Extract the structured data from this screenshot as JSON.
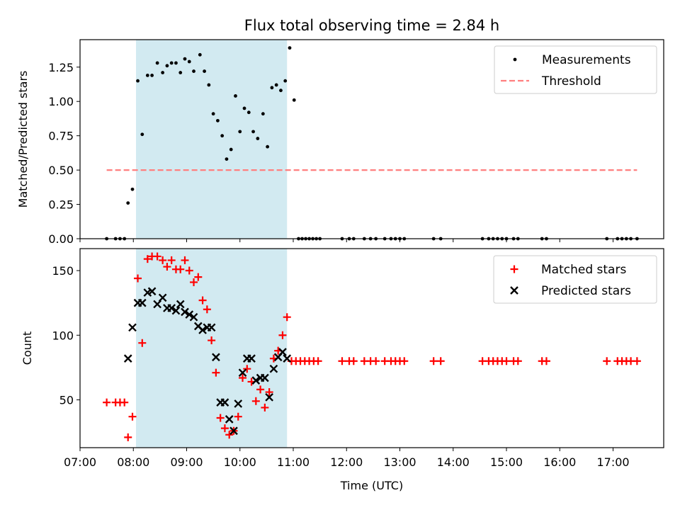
{
  "figure": {
    "title": "Flux total observing time = 2.84 h",
    "highlight_color": "#add8e6"
  },
  "chart_data": [
    {
      "type": "scatter",
      "x_type": "time",
      "xlim": [
        "07:00",
        "17:57"
      ],
      "ylim": [
        0,
        1.45
      ],
      "ylabel": "Matched/Predicted stars",
      "yticks": [
        "0.00",
        "0.25",
        "0.50",
        "0.75",
        "1.00",
        "1.25"
      ],
      "highlight_span": [
        "08:03",
        "10:53"
      ],
      "legend": "top-right",
      "series": [
        {
          "name": "Measurements",
          "marker": "dot",
          "color": "#000000",
          "points": [
            [
              "07:30",
              0
            ],
            [
              "07:40",
              0
            ],
            [
              "07:45",
              0
            ],
            [
              "07:50",
              0
            ],
            [
              "07:54",
              0.26
            ],
            [
              "07:59",
              0.36
            ],
            [
              "08:05",
              1.15
            ],
            [
              "08:10",
              0.76
            ],
            [
              "08:16",
              1.19
            ],
            [
              "08:21",
              1.19
            ],
            [
              "08:27",
              1.28
            ],
            [
              "08:33",
              1.21
            ],
            [
              "08:38",
              1.26
            ],
            [
              "08:43",
              1.28
            ],
            [
              "08:48",
              1.28
            ],
            [
              "08:53",
              1.21
            ],
            [
              "08:58",
              1.31
            ],
            [
              "09:03",
              1.29
            ],
            [
              "09:08",
              1.22
            ],
            [
              "09:15",
              1.34
            ],
            [
              "09:20",
              1.22
            ],
            [
              "09:25",
              1.12
            ],
            [
              "09:30",
              0.91
            ],
            [
              "09:35",
              0.86
            ],
            [
              "09:40",
              0.75
            ],
            [
              "09:45",
              0.58
            ],
            [
              "09:50",
              0.65
            ],
            [
              "09:55",
              1.04
            ],
            [
              "10:00",
              0.78
            ],
            [
              "10:05",
              0.95
            ],
            [
              "10:10",
              0.92
            ],
            [
              "10:15",
              0.78
            ],
            [
              "10:20",
              0.73
            ],
            [
              "10:26",
              0.91
            ],
            [
              "10:31",
              0.67
            ],
            [
              "10:36",
              1.1
            ],
            [
              "10:41",
              1.12
            ],
            [
              "10:46",
              1.08
            ],
            [
              "10:51",
              1.15
            ],
            [
              "10:56",
              1.39
            ],
            [
              "11:01",
              1.01
            ],
            [
              "11:06",
              0
            ],
            [
              "11:10",
              0
            ],
            [
              "11:14",
              0
            ],
            [
              "11:18",
              0
            ],
            [
              "11:22",
              0
            ],
            [
              "11:26",
              0
            ],
            [
              "11:30",
              0
            ],
            [
              "11:55",
              0
            ],
            [
              "12:03",
              0
            ],
            [
              "12:08",
              0
            ],
            [
              "12:20",
              0
            ],
            [
              "12:27",
              0
            ],
            [
              "12:33",
              0
            ],
            [
              "12:43",
              0
            ],
            [
              "12:50",
              0
            ],
            [
              "12:55",
              0
            ],
            [
              "13:00",
              0
            ],
            [
              "13:05",
              0
            ],
            [
              "13:38",
              0
            ],
            [
              "13:46",
              0
            ],
            [
              "14:33",
              0
            ],
            [
              "14:40",
              0
            ],
            [
              "14:45",
              0
            ],
            [
              "14:50",
              0
            ],
            [
              "14:55",
              0
            ],
            [
              "15:00",
              0
            ],
            [
              "15:08",
              0
            ],
            [
              "15:13",
              0
            ],
            [
              "15:40",
              0
            ],
            [
              "15:45",
              0
            ],
            [
              "16:53",
              0
            ],
            [
              "17:05",
              0
            ],
            [
              "17:10",
              0
            ],
            [
              "17:15",
              0
            ],
            [
              "17:20",
              0
            ],
            [
              "17:27",
              0
            ]
          ]
        },
        {
          "name": "Threshold",
          "style": "dashed-line",
          "color": "#ff7f7f",
          "points": [
            [
              "07:30",
              0.5
            ],
            [
              "17:27",
              0.5
            ]
          ]
        }
      ]
    },
    {
      "type": "scatter",
      "x_type": "time",
      "xlim": [
        "07:00",
        "17:57"
      ],
      "ylim": [
        13,
        167
      ],
      "xlabel": "Time (UTC)",
      "ylabel": "Count",
      "yticks": [
        "50",
        "100",
        "150"
      ],
      "xticks": [
        "07:00",
        "08:00",
        "09:00",
        "10:00",
        "11:00",
        "12:00",
        "13:00",
        "14:00",
        "15:00",
        "16:00",
        "17:00"
      ],
      "highlight_span": [
        "08:03",
        "10:53"
      ],
      "legend": "top-right",
      "series": [
        {
          "name": "Matched stars",
          "marker": "plus",
          "color": "#ff0000",
          "points": [
            [
              "07:30",
              48
            ],
            [
              "07:40",
              48
            ],
            [
              "07:45",
              48
            ],
            [
              "07:50",
              48
            ],
            [
              "07:54",
              21
            ],
            [
              "07:59",
              37
            ],
            [
              "08:05",
              144
            ],
            [
              "08:10",
              94
            ],
            [
              "08:16",
              159
            ],
            [
              "08:21",
              161
            ],
            [
              "08:27",
              161
            ],
            [
              "08:33",
              158
            ],
            [
              "08:38",
              153
            ],
            [
              "08:43",
              158
            ],
            [
              "08:48",
              151
            ],
            [
              "08:53",
              151
            ],
            [
              "08:58",
              158
            ],
            [
              "09:03",
              150
            ],
            [
              "09:08",
              141
            ],
            [
              "09:13",
              145
            ],
            [
              "09:18",
              127
            ],
            [
              "09:23",
              120
            ],
            [
              "09:28",
              96
            ],
            [
              "09:33",
              71
            ],
            [
              "09:38",
              36
            ],
            [
              "09:43",
              28
            ],
            [
              "09:48",
              23
            ],
            [
              "09:53",
              26
            ],
            [
              "09:58",
              37
            ],
            [
              "10:03",
              67
            ],
            [
              "10:08",
              74
            ],
            [
              "10:13",
              64
            ],
            [
              "10:18",
              49
            ],
            [
              "10:23",
              58
            ],
            [
              "10:28",
              44
            ],
            [
              "10:33",
              56
            ],
            [
              "10:38",
              82
            ],
            [
              "10:43",
              88
            ],
            [
              "10:48",
              100
            ],
            [
              "10:53",
              114
            ],
            [
              "10:58",
              80
            ],
            [
              "11:03",
              80
            ],
            [
              "11:08",
              80
            ],
            [
              "11:13",
              80
            ],
            [
              "11:18",
              80
            ],
            [
              "11:23",
              80
            ],
            [
              "11:28",
              80
            ],
            [
              "11:55",
              80
            ],
            [
              "12:03",
              80
            ],
            [
              "12:08",
              80
            ],
            [
              "12:20",
              80
            ],
            [
              "12:27",
              80
            ],
            [
              "12:33",
              80
            ],
            [
              "12:43",
              80
            ],
            [
              "12:50",
              80
            ],
            [
              "12:55",
              80
            ],
            [
              "13:00",
              80
            ],
            [
              "13:05",
              80
            ],
            [
              "13:38",
              80
            ],
            [
              "13:46",
              80
            ],
            [
              "14:33",
              80
            ],
            [
              "14:40",
              80
            ],
            [
              "14:45",
              80
            ],
            [
              "14:50",
              80
            ],
            [
              "14:55",
              80
            ],
            [
              "15:00",
              80
            ],
            [
              "15:08",
              80
            ],
            [
              "15:13",
              80
            ],
            [
              "15:40",
              80
            ],
            [
              "15:45",
              80
            ],
            [
              "16:53",
              80
            ],
            [
              "17:05",
              80
            ],
            [
              "17:10",
              80
            ],
            [
              "17:15",
              80
            ],
            [
              "17:20",
              80
            ],
            [
              "17:27",
              80
            ]
          ]
        },
        {
          "name": "Predicted stars",
          "marker": "x",
          "color": "#000000",
          "points": [
            [
              "07:54",
              82
            ],
            [
              "07:59",
              106
            ],
            [
              "08:05",
              125
            ],
            [
              "08:10",
              125
            ],
            [
              "08:16",
              133
            ],
            [
              "08:21",
              134
            ],
            [
              "08:27",
              124
            ],
            [
              "08:33",
              129
            ],
            [
              "08:38",
              121
            ],
            [
              "08:43",
              121
            ],
            [
              "08:48",
              119
            ],
            [
              "08:53",
              124
            ],
            [
              "08:58",
              118
            ],
            [
              "09:03",
              116
            ],
            [
              "09:08",
              114
            ],
            [
              "09:13",
              107
            ],
            [
              "09:18",
              104
            ],
            [
              "09:23",
              106
            ],
            [
              "09:28",
              106
            ],
            [
              "09:33",
              83
            ],
            [
              "09:38",
              48
            ],
            [
              "09:43",
              48
            ],
            [
              "09:48",
              35
            ],
            [
              "09:53",
              26
            ],
            [
              "09:58",
              47
            ],
            [
              "10:03",
              71
            ],
            [
              "10:08",
              82
            ],
            [
              "10:13",
              82
            ],
            [
              "10:18",
              65
            ],
            [
              "10:23",
              67
            ],
            [
              "10:28",
              67
            ],
            [
              "10:33",
              52
            ],
            [
              "10:38",
              74
            ],
            [
              "10:43",
              83
            ],
            [
              "10:48",
              87
            ],
            [
              "10:53",
              82
            ]
          ]
        }
      ]
    }
  ]
}
